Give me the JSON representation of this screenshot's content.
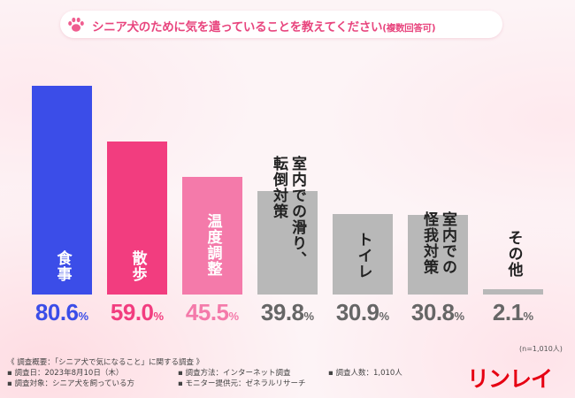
{
  "title": {
    "main": "シニア犬のために気を遣っていることを教えてください",
    "note": "(複数回答可)"
  },
  "chart_data": {
    "type": "bar",
    "title": "シニア犬のために気を遣っていることを教えてください(複数回答可)",
    "ylim": [
      0,
      100
    ],
    "unit": "%",
    "categories": [
      "食事",
      "散歩",
      "温度調整",
      "室内での滑り、転倒対策",
      "トイレ",
      "室内での怪我対策",
      "その他"
    ],
    "label_columns": [
      [
        "食事"
      ],
      [
        "散歩"
      ],
      [
        "温度調整"
      ],
      [
        "室内での滑り、",
        "転倒対策"
      ],
      [
        "トイレ"
      ],
      [
        "室内での",
        "怪我対策"
      ],
      [
        "その他"
      ]
    ],
    "values": [
      80.6,
      59.0,
      45.5,
      39.8,
      30.9,
      30.8,
      2.1
    ],
    "value_labels": [
      {
        "num": "80.6",
        "unit": "%"
      },
      {
        "num": "59.0",
        "unit": "%"
      },
      {
        "num": "45.5",
        "unit": "%"
      },
      {
        "num": "39.8",
        "unit": "%"
      },
      {
        "num": "30.9",
        "unit": "%"
      },
      {
        "num": "30.8",
        "unit": "%"
      },
      {
        "num": "2.1",
        "unit": "%"
      }
    ],
    "bar_colors": [
      "#3b4de8",
      "#f23d7f",
      "#f47aaa",
      "#b8b8b8",
      "#b8b8b8",
      "#b8b8b8",
      "#b8b8b8"
    ],
    "label_colors": [
      "#ffffff",
      "#ffffff",
      "#ffffff",
      "#222222",
      "#222222",
      "#222222",
      "#222222"
    ],
    "value_colors": [
      "#3b4de8",
      "#f23d7f",
      "#f47aaa",
      "#666666",
      "#666666",
      "#666666",
      "#666666"
    ]
  },
  "sample_size": "(n=1,010人)",
  "notes": {
    "heading": "《 調査概要：「シニア犬で気になること」に関する調査 》",
    "date": "▪ 調査日：2023年8月10日（木）",
    "method": "▪ 調査方法：インターネット調査",
    "count": "▪ 調査人数：1,010人",
    "target": "▪ 調査対象：シニア犬を飼っている方",
    "provider": "▪ モニター提供元：ゼネラルリサーチ"
  },
  "logo": "リンレイ",
  "icons": {
    "title": "paw-icon"
  }
}
